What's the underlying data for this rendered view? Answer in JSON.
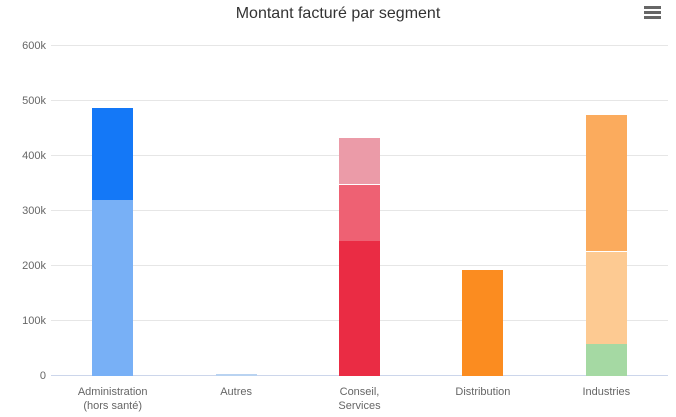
{
  "header": {
    "title": "Montant facturé par segment",
    "menu_icon": "hamburger-menu"
  },
  "chart_data": {
    "type": "bar",
    "stacked": true,
    "title": "Montant facturé par segment",
    "xlabel": "",
    "ylabel": "",
    "ylim": [
      0,
      600000
    ],
    "grid": true,
    "legend": "none",
    "y_ticks": [
      {
        "value": 0,
        "label": "0"
      },
      {
        "value": 100000,
        "label": "100k"
      },
      {
        "value": 200000,
        "label": "200k"
      },
      {
        "value": 300000,
        "label": "300k"
      },
      {
        "value": 400000,
        "label": "400k"
      },
      {
        "value": 500000,
        "label": "500k"
      },
      {
        "value": 600000,
        "label": "600k"
      }
    ],
    "categories": [
      "Administration (hors santé)",
      "Autres",
      "Conseil, Services",
      "Distribution",
      "Industries"
    ],
    "bars": [
      {
        "category": "Administration (hors santé)",
        "label_lines": [
          "Administration",
          "(hors santé)"
        ],
        "total": 490000,
        "segments": [
          {
            "value": 320000,
            "color": "#78b0f6"
          },
          {
            "value": 170000,
            "color": "#1478f7"
          }
        ]
      },
      {
        "category": "Autres",
        "label_lines": [
          "Autres"
        ],
        "total": 4500,
        "segments": [
          {
            "value": 4500,
            "color": "#b9d3f1"
          }
        ]
      },
      {
        "category": "Conseil, Services",
        "label_lines": [
          "Conseil,",
          "Services"
        ],
        "total": 435000,
        "segments": [
          {
            "value": 245000,
            "color": "#ea2c44"
          },
          {
            "value": 105000,
            "color": "#ee6173"
          },
          {
            "value": 85000,
            "color": "#eb9ba8"
          }
        ]
      },
      {
        "category": "Distribution",
        "label_lines": [
          "Distribution"
        ],
        "total": 192000,
        "segments": [
          {
            "value": 192000,
            "color": "#fb8c20"
          }
        ]
      },
      {
        "category": "Industries",
        "label_lines": [
          "Industries"
        ],
        "total": 476000,
        "segments": [
          {
            "value": 58000,
            "color": "#a5d9a3"
          },
          {
            "value": 169000,
            "color": "#fdca92"
          },
          {
            "value": 249000,
            "color": "#fbab5d"
          }
        ]
      }
    ],
    "colors": {
      "gridline": "#e6e6e6",
      "axis_line": "#ccd6eb",
      "tick_label": "#666666",
      "title": "#333333"
    }
  }
}
